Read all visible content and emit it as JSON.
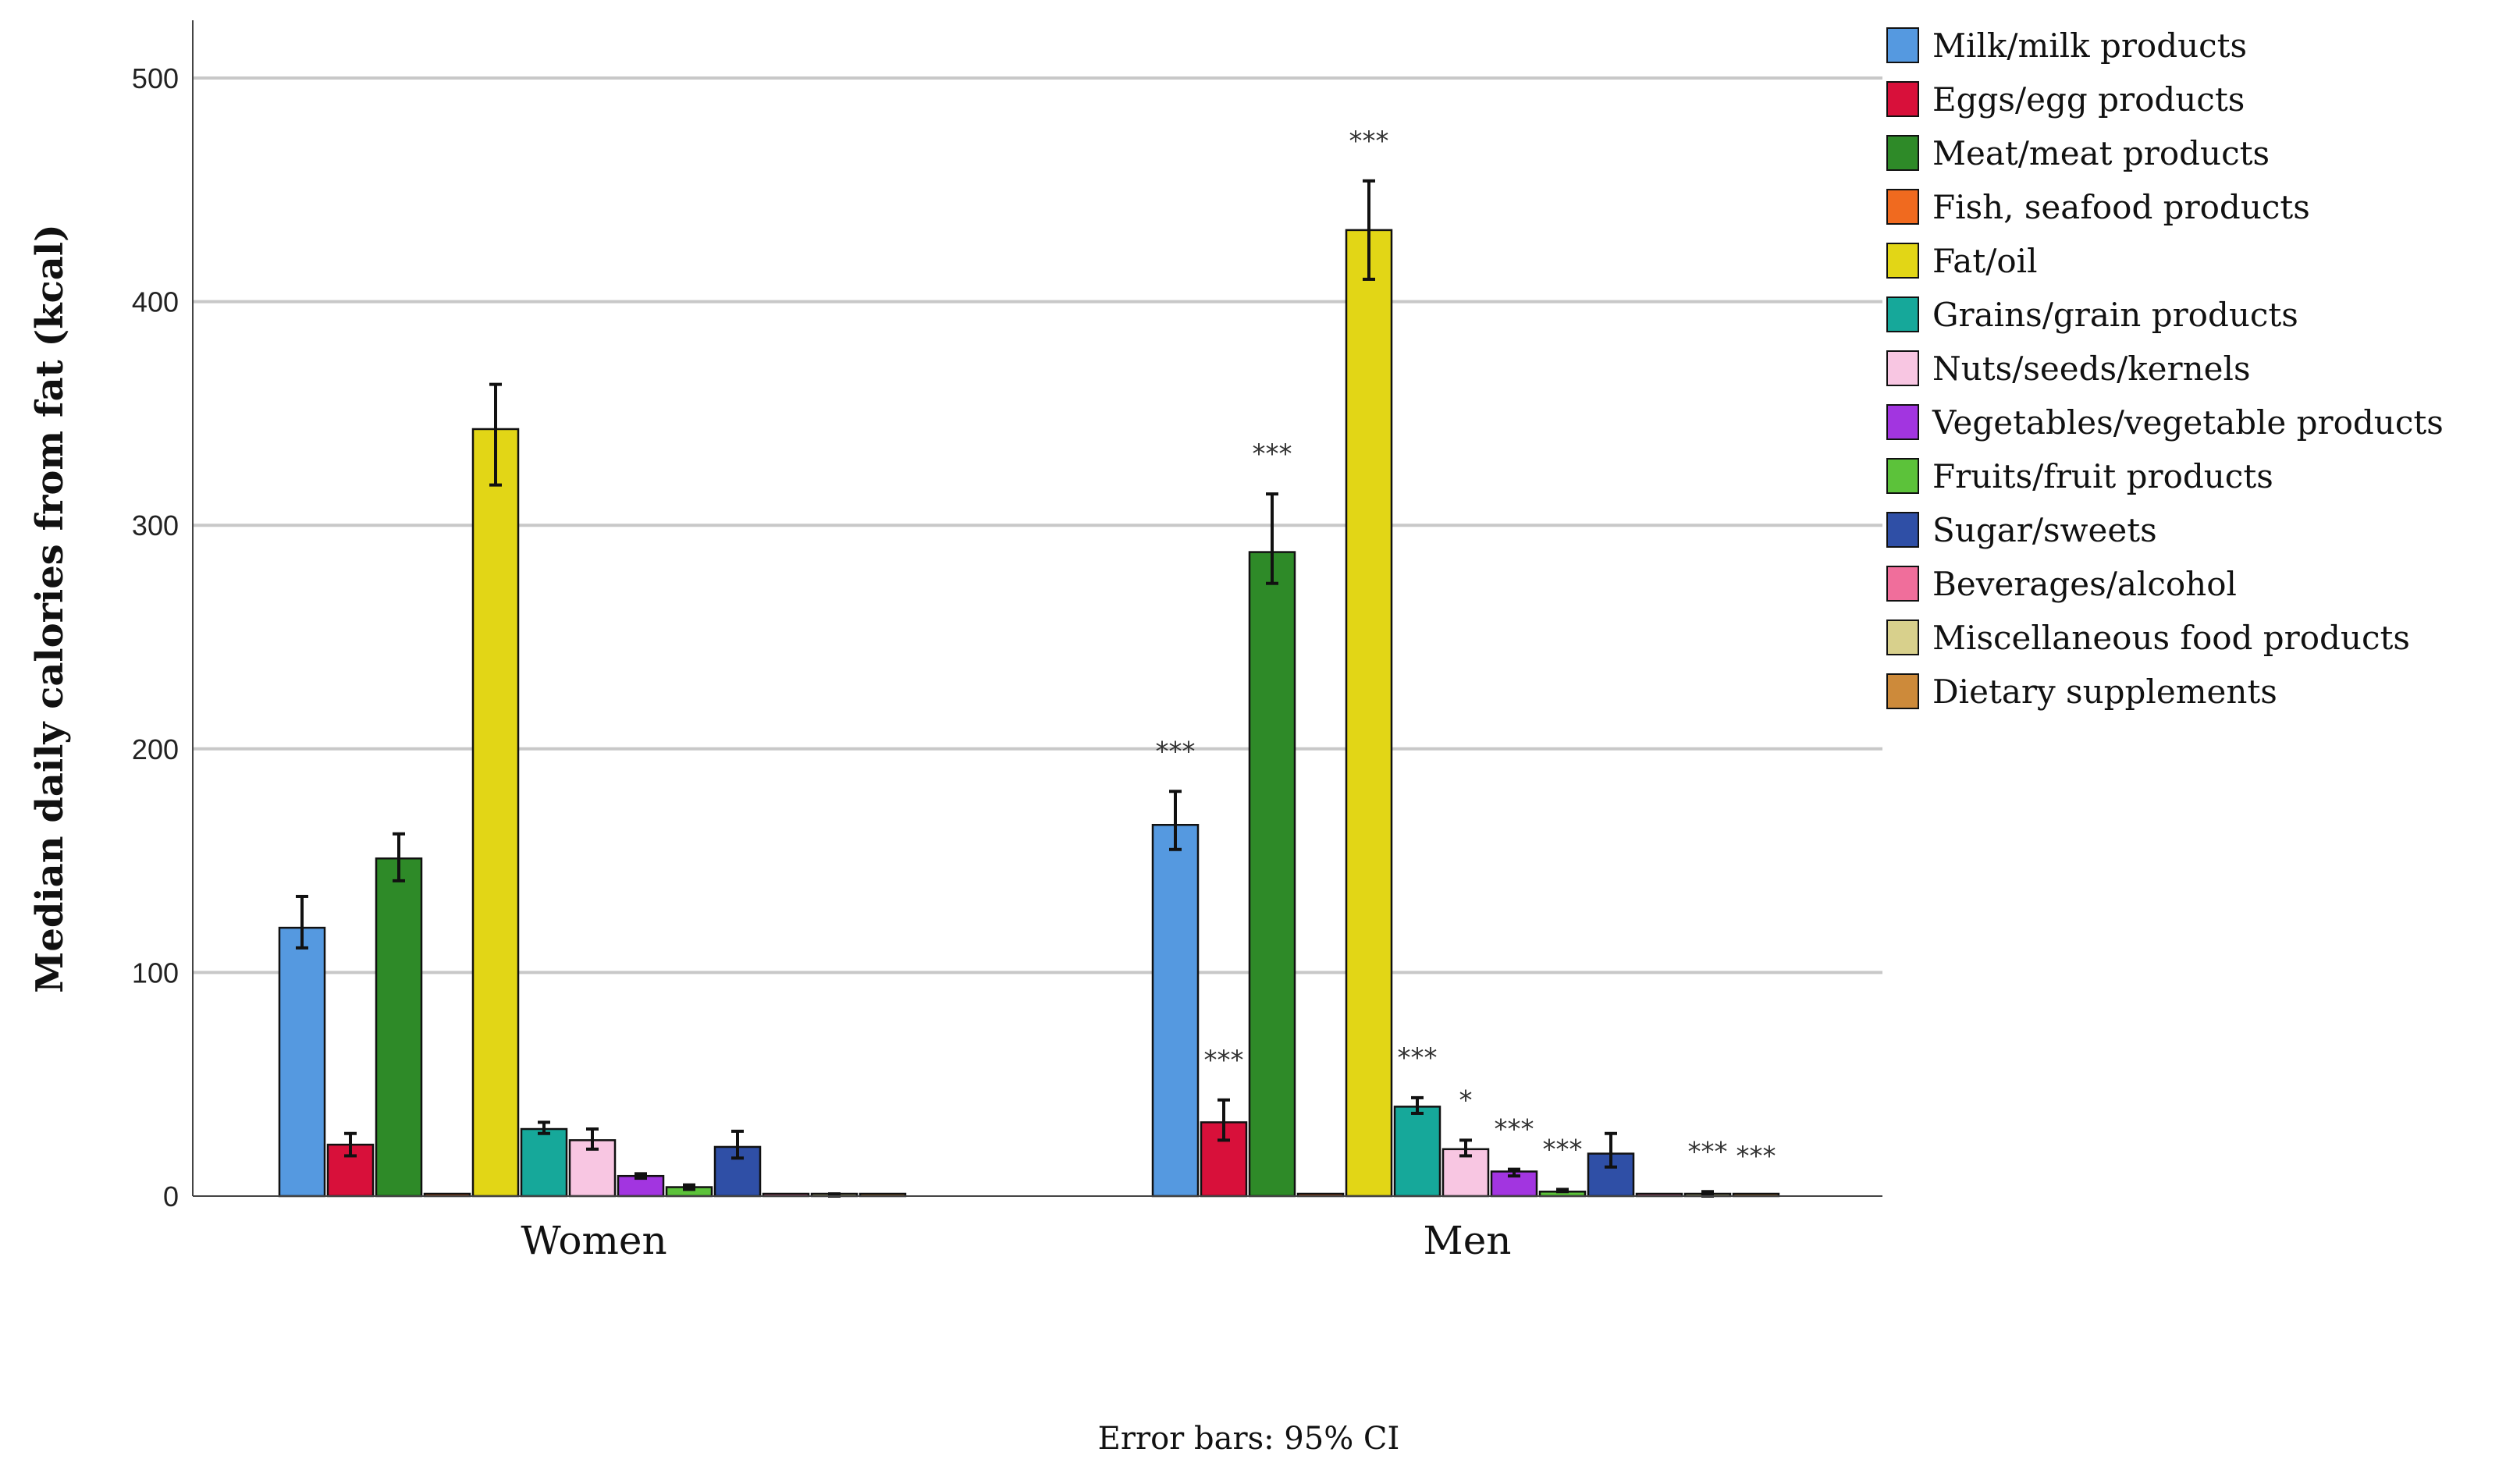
{
  "chart_data": {
    "type": "bar",
    "title": "",
    "xlabel": "",
    "ylabel": "Median daily calories from fat (kcal)",
    "ylim": [
      0,
      500
    ],
    "yticks": [
      0,
      100,
      200,
      300,
      400,
      500
    ],
    "grid": true,
    "legend_position": "right",
    "footnote": "Error bars: 95% CI",
    "categories": [
      "Women",
      "Men"
    ],
    "series": [
      {
        "name": "Milk/milk products",
        "color": "#5599e0",
        "values": [
          120,
          166
        ],
        "ci_low": [
          111,
          155
        ],
        "ci_high": [
          134,
          181
        ],
        "sig": [
          "",
          "***"
        ]
      },
      {
        "name": "Eggs/egg products",
        "color": "#d8103a",
        "values": [
          23,
          33
        ],
        "ci_low": [
          18,
          25
        ],
        "ci_high": [
          28,
          43
        ],
        "sig": [
          "",
          "***"
        ]
      },
      {
        "name": "Meat/meat products",
        "color": "#2e8a28",
        "values": [
          151,
          288
        ],
        "ci_low": [
          141,
          274
        ],
        "ci_high": [
          162,
          314
        ],
        "sig": [
          "",
          "***"
        ]
      },
      {
        "name": "Fish, seafood products",
        "color": "#f06a1f",
        "values": [
          0,
          0
        ],
        "ci_low": [
          0,
          0
        ],
        "ci_high": [
          0,
          0
        ],
        "sig": [
          "",
          ""
        ]
      },
      {
        "name": "Fat/oil",
        "color": "#e2d616",
        "values": [
          343,
          432
        ],
        "ci_low": [
          318,
          410
        ],
        "ci_high": [
          363,
          454
        ],
        "sig": [
          "",
          "***"
        ]
      },
      {
        "name": "Grains/grain products",
        "color": "#16a89a",
        "values": [
          30,
          40
        ],
        "ci_low": [
          28,
          37
        ],
        "ci_high": [
          33,
          44
        ],
        "sig": [
          "",
          "***"
        ]
      },
      {
        "name": "Nuts/seeds/kernels",
        "color": "#f8c6e2",
        "values": [
          25,
          21
        ],
        "ci_low": [
          21,
          18
        ],
        "ci_high": [
          30,
          25
        ],
        "sig": [
          "",
          "*"
        ]
      },
      {
        "name": "Vegetables/vegetable products",
        "color": "#a235e0",
        "values": [
          9,
          11
        ],
        "ci_low": [
          8,
          9
        ],
        "ci_high": [
          10,
          12
        ],
        "sig": [
          "",
          "***"
        ]
      },
      {
        "name": "Fruits/fruit products",
        "color": "#5cc23a",
        "values": [
          4,
          2
        ],
        "ci_low": [
          3,
          2
        ],
        "ci_high": [
          5,
          3
        ],
        "sig": [
          "",
          "***"
        ]
      },
      {
        "name": "Sugar/sweets",
        "color": "#2f4fa6",
        "values": [
          22,
          19
        ],
        "ci_low": [
          17,
          13
        ],
        "ci_high": [
          29,
          28
        ],
        "sig": [
          "",
          ""
        ]
      },
      {
        "name": "Beverages/alcohol",
        "color": "#f06e9b",
        "values": [
          0,
          0
        ],
        "ci_low": [
          0,
          0
        ],
        "ci_high": [
          0,
          0
        ],
        "sig": [
          "",
          ""
        ]
      },
      {
        "name": "Miscellaneous food products",
        "color": "#d8d08c",
        "values": [
          1,
          1
        ],
        "ci_low": [
          0,
          0
        ],
        "ci_high": [
          1,
          2
        ],
        "sig": [
          "",
          "***"
        ]
      },
      {
        "name": "Dietary supplements",
        "color": "#cd8a3a",
        "values": [
          0,
          0
        ],
        "ci_low": [
          0,
          0
        ],
        "ci_high": [
          0,
          0
        ],
        "sig": [
          "",
          "***"
        ]
      }
    ]
  }
}
